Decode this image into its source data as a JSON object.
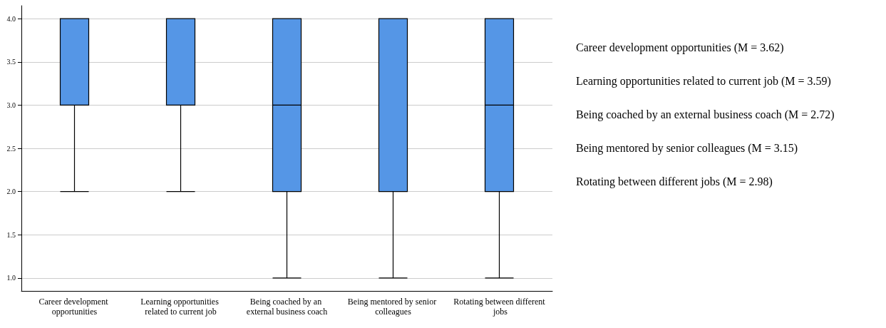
{
  "chart_data": {
    "type": "box",
    "categories": [
      "Career development opportunities",
      "Learning opportunities related to current job",
      "Being coached by an external business coach",
      "Being mentored by senior colleagues",
      "Rotating between different jobs"
    ],
    "boxes": [
      {
        "low": 2,
        "q1": 3,
        "median": 4,
        "q3": 4,
        "high": 4
      },
      {
        "low": 2,
        "q1": 3,
        "median": 4,
        "q3": 4,
        "high": 4
      },
      {
        "low": 1,
        "q1": 2,
        "median": 3,
        "q3": 4,
        "high": 4
      },
      {
        "low": 1,
        "q1": 2,
        "median": 4,
        "q3": 4,
        "high": 4
      },
      {
        "low": 1,
        "q1": 2,
        "median": 3,
        "q3": 4,
        "high": 4
      }
    ],
    "color": "#5596e6",
    "ylim": [
      0.85,
      4.15
    ],
    "yticks": [
      {
        "value": 1,
        "label": "1.0"
      },
      {
        "value": 1.5,
        "label": "1.5"
      },
      {
        "value": 2,
        "label": "2.0"
      },
      {
        "value": 2.5,
        "label": "2.5"
      },
      {
        "value": 3,
        "label": "3.0"
      },
      {
        "value": 3.5,
        "label": "3.5"
      },
      {
        "value": 4,
        "label": "4.0"
      }
    ],
    "grid": "y",
    "annotations": [
      "Career development opportunities (M = 3.62)",
      "Learning opportunities related to current job (M = 3.59)",
      "Being coached by an external business coach (M = 2.72)",
      "Being mentored by senior colleagues (M = 3.15)",
      "Rotating between different jobs (M = 2.98)"
    ]
  }
}
